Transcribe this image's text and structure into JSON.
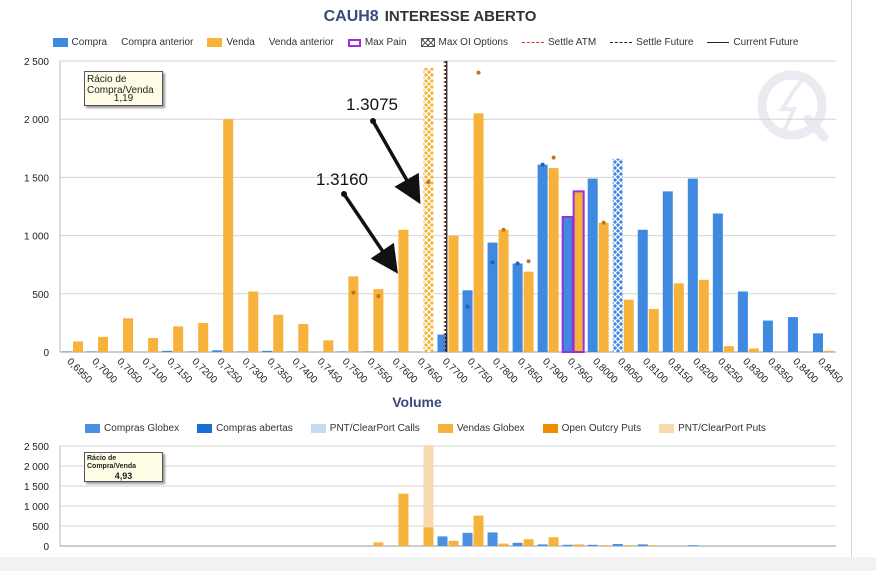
{
  "header": {
    "symbol": "CAUH8",
    "title": "INTERESSE  ABERTO"
  },
  "legend_top": [
    {
      "label": "Compra",
      "kind": "swatch",
      "color": "#3f8ae0"
    },
    {
      "label": "Compra anterior",
      "kind": "none"
    },
    {
      "label": "Venda",
      "kind": "swatch",
      "color": "#f7b23b"
    },
    {
      "label": "Venda anterior",
      "kind": "none"
    },
    {
      "label": "Max Pain",
      "kind": "box",
      "color": "#9b30d9"
    },
    {
      "label": "Max OI Options",
      "kind": "hatch"
    },
    {
      "label": "Settle ATM",
      "kind": "dash",
      "color": "#c0392b"
    },
    {
      "label": "Settle Future",
      "kind": "dash",
      "color": "#222222"
    },
    {
      "label": "Current Future",
      "kind": "line",
      "color": "#222222"
    }
  ],
  "legend_bottom": [
    {
      "label": "Compras Globex",
      "color": "#4a90e2"
    },
    {
      "label": "Compras abertas",
      "color": "#1a6fd6"
    },
    {
      "label": "PNT/ClearPort Calls",
      "color": "#c6dbf0"
    },
    {
      "label": "Vendas Globex",
      "color": "#f7b23b"
    },
    {
      "label": "Open Outcry Puts",
      "color": "#f08c00"
    },
    {
      "label": "PNT/ClearPort Puts",
      "color": "#f6d9ad"
    }
  ],
  "ratio_top": {
    "label": "Rácio de Compra/Venda",
    "value": "1,19"
  },
  "ratio_bottom": {
    "label": "Rácio de Compra/Venda",
    "value": "4,93"
  },
  "annotations": [
    {
      "text": "1.3075",
      "strike_index": 14
    },
    {
      "text": "1.3160",
      "strike_index": 13
    }
  ],
  "chart_data": [
    {
      "type": "bar",
      "xlabel": "Volume",
      "ylim": [
        0,
        2500
      ],
      "yticks": [
        "0",
        "500",
        "1 000",
        "1 500",
        "2 000",
        "2 500"
      ],
      "grid": true,
      "categories": [
        "0,6950",
        "0,7000",
        "0,7050",
        "0,7100",
        "0,7150",
        "0,7200",
        "0,7250",
        "0,7300",
        "0,7350",
        "0,7400",
        "0,7450",
        "0,7500",
        "0,7550",
        "0,7600",
        "0,7650",
        "0,7700",
        "0,7750",
        "0,7800",
        "0,7850",
        "0,7900",
        "0,7950",
        "0,8000",
        "0,8050",
        "0,8100",
        "0,8150",
        "0,8200",
        "0,8250",
        "0,8300",
        "0,8350",
        "0,8400",
        "0,8450"
      ],
      "series": [
        {
          "name": "Compra",
          "color": "#3f8ae0",
          "values": [
            5,
            5,
            0,
            0,
            10,
            5,
            15,
            5,
            10,
            5,
            0,
            5,
            5,
            5,
            0,
            150,
            530,
            940,
            760,
            1610,
            1160,
            1490,
            1660,
            1050,
            1380,
            1490,
            1190,
            520,
            270,
            300,
            160
          ]
        },
        {
          "name": "Compra anterior",
          "color": "#1f5fbf",
          "values": [
            null,
            null,
            null,
            null,
            null,
            null,
            null,
            null,
            null,
            null,
            null,
            null,
            null,
            null,
            null,
            null,
            390,
            770,
            760,
            1610,
            null,
            null,
            null,
            null,
            null,
            null,
            null,
            null,
            null,
            null,
            null
          ]
        },
        {
          "name": "Venda",
          "color": "#f7b23b",
          "values": [
            90,
            130,
            290,
            120,
            220,
            250,
            2000,
            520,
            320,
            240,
            100,
            650,
            540,
            1050,
            2440,
            1000,
            2050,
            1050,
            690,
            1580,
            1380,
            1110,
            450,
            370,
            590,
            620,
            50,
            30,
            0,
            0,
            10
          ]
        },
        {
          "name": "Venda anterior",
          "color": "#c87416",
          "values": [
            null,
            null,
            null,
            null,
            null,
            null,
            null,
            null,
            null,
            null,
            null,
            510,
            480,
            null,
            1460,
            null,
            2400,
            1050,
            780,
            1670,
            null,
            1110,
            null,
            null,
            null,
            null,
            null,
            null,
            null,
            null,
            null
          ]
        }
      ],
      "max_pain_index": 20,
      "max_oi_options": [
        {
          "index": 14,
          "side": "Venda",
          "value": 2440
        },
        {
          "index": 22,
          "side": "Compra",
          "value": 1660
        }
      ],
      "settle_atm_index": 14.85,
      "settle_future_index": 14.9,
      "current_future_index": 14.95
    },
    {
      "type": "bar",
      "ylim": [
        0,
        2500
      ],
      "yticks": [
        "0",
        "500",
        "1 000",
        "1 500",
        "2 000",
        "2 500"
      ],
      "grid": true,
      "stacked": true,
      "categories": [
        "0,6950",
        "0,7000",
        "0,7050",
        "0,7100",
        "0,7150",
        "0,7200",
        "0,7250",
        "0,7300",
        "0,7350",
        "0,7400",
        "0,7450",
        "0,7500",
        "0,7550",
        "0,7600",
        "0,7650",
        "0,7700",
        "0,7750",
        "0,7800",
        "0,7850",
        "0,7900",
        "0,7950",
        "0,8000",
        "0,8050",
        "0,8100",
        "0,8150",
        "0,8200",
        "0,8250",
        "0,8300",
        "0,8350",
        "0,8400",
        "0,8450"
      ],
      "series": [
        {
          "name": "Compras Globex",
          "color": "#4a90e2",
          "values": [
            0,
            0,
            0,
            0,
            0,
            0,
            0,
            0,
            0,
            0,
            0,
            0,
            0,
            0,
            0,
            240,
            330,
            340,
            80,
            40,
            30,
            30,
            50,
            40,
            0,
            20,
            0,
            0,
            0,
            0,
            0
          ]
        },
        {
          "name": "Vendas Globex",
          "color": "#f7b23b",
          "values": [
            0,
            0,
            0,
            0,
            0,
            0,
            0,
            0,
            0,
            0,
            0,
            0,
            90,
            1310,
            470,
            130,
            760,
            60,
            170,
            220,
            40,
            20,
            20,
            20,
            0,
            0,
            0,
            0,
            0,
            0,
            0
          ]
        },
        {
          "name": "PNT/ClearPort Puts",
          "color": "#f6d9ad",
          "values": [
            0,
            0,
            0,
            0,
            0,
            0,
            0,
            0,
            0,
            0,
            0,
            0,
            0,
            0,
            2050,
            0,
            0,
            0,
            0,
            0,
            0,
            0,
            0,
            0,
            0,
            0,
            0,
            0,
            0,
            0,
            0
          ]
        }
      ]
    }
  ]
}
